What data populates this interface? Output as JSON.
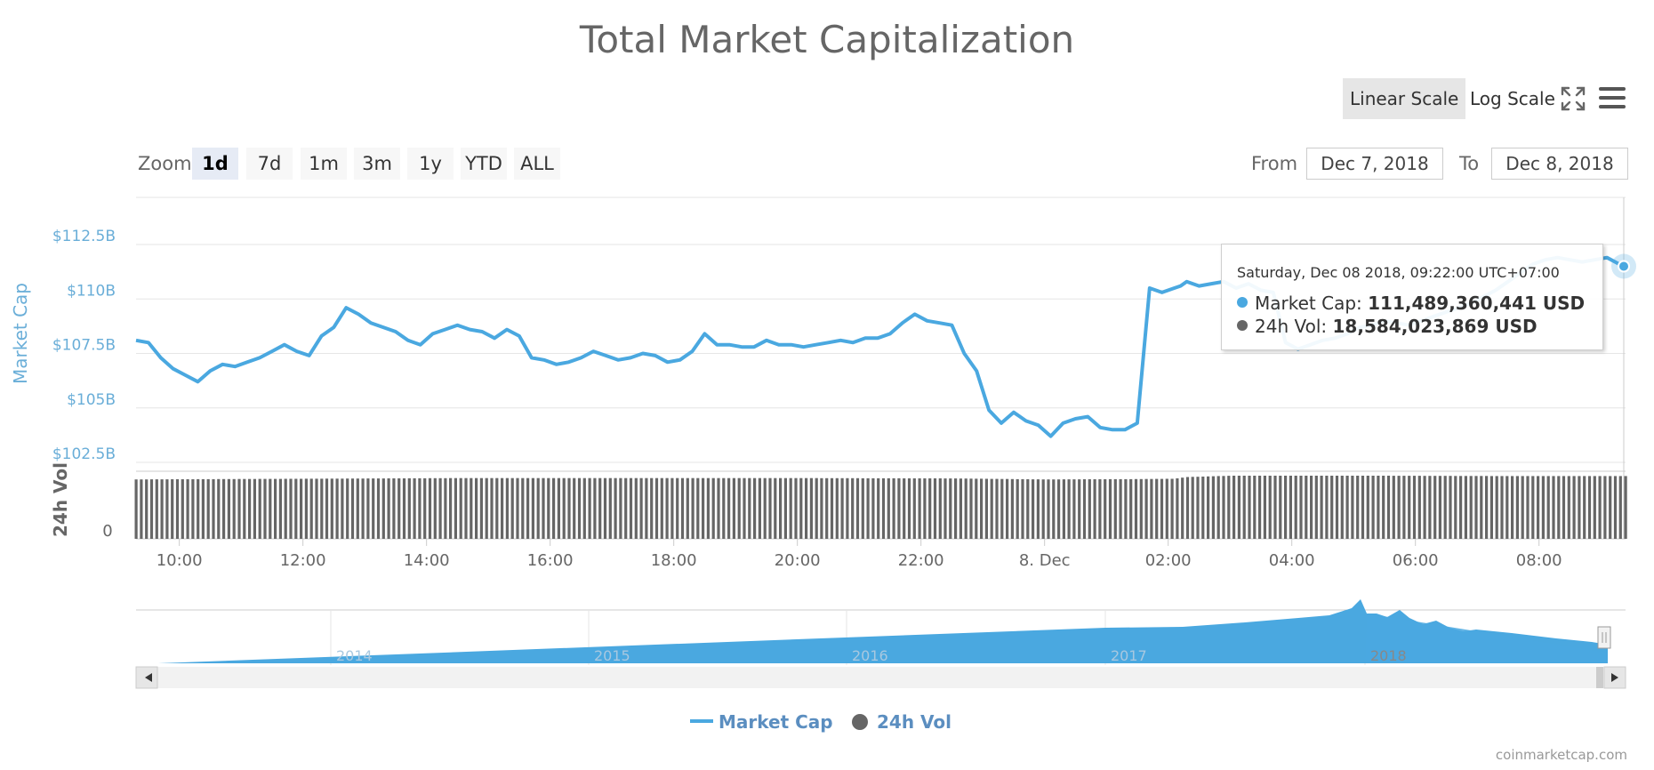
{
  "header": {
    "title": "Total Market Capitalization"
  },
  "scale": {
    "linear_label": "Linear Scale",
    "log_label": "Log Scale",
    "active": "linear"
  },
  "zoom": {
    "label": "Zoom",
    "buttons": [
      "1d",
      "7d",
      "1m",
      "3m",
      "1y",
      "YTD",
      "ALL"
    ],
    "active": "1d"
  },
  "range": {
    "from_label": "From",
    "from_value": "Dec 7, 2018",
    "to_label": "To",
    "to_value": "Dec 8, 2018"
  },
  "tooltip": {
    "date": "Saturday, Dec 08 2018, 09:22:00 UTC+07:00",
    "market_cap_label": "Market Cap:",
    "market_cap_value": "111,489,360,441 USD",
    "vol_label": "24h Vol:",
    "vol_value": "18,584,023,869 USD"
  },
  "legend": {
    "market_cap": "Market Cap",
    "vol": "24h Vol"
  },
  "credits": "coinmarketcap.com",
  "icons": {
    "fullscreen": "fullscreen-icon",
    "menu": "hamburger-menu-icon"
  },
  "chart_data": {
    "type": "line",
    "title": "Total Market Capitalization",
    "colors": {
      "market_cap": "#4aa8e0",
      "vol": "#666666",
      "navigator": "#4aa8e0",
      "axis_label": "#6aaed8"
    },
    "y_axis": {
      "label": "Market Cap",
      "ticks": [
        "$102.5B",
        "$105B",
        "$107.5B",
        "$110B",
        "$112.5B"
      ],
      "tick_values": [
        102.5,
        105,
        107.5,
        110,
        112.5
      ],
      "unit": "billion USD"
    },
    "vol_axis": {
      "label": "24h Vol",
      "ticks": [
        "0"
      ]
    },
    "x_axis": {
      "ticks": [
        "10:00",
        "12:00",
        "14:00",
        "16:00",
        "18:00",
        "20:00",
        "22:00",
        "8. Dec",
        "02:00",
        "04:00",
        "06:00",
        "08:00"
      ],
      "start_hours": 9.3,
      "end_hours": 33.4
    },
    "series": [
      {
        "name": "Market Cap",
        "x_hours": [
          9.3,
          9.5,
          9.7,
          9.9,
          10.1,
          10.3,
          10.5,
          10.7,
          10.9,
          11.1,
          11.3,
          11.5,
          11.7,
          11.9,
          12.1,
          12.3,
          12.5,
          12.7,
          12.9,
          13.1,
          13.3,
          13.5,
          13.7,
          13.9,
          14.1,
          14.3,
          14.5,
          14.7,
          14.9,
          15.1,
          15.3,
          15.5,
          15.7,
          15.9,
          16.1,
          16.3,
          16.5,
          16.7,
          16.9,
          17.1,
          17.3,
          17.5,
          17.7,
          17.9,
          18.1,
          18.3,
          18.5,
          18.7,
          18.9,
          19.1,
          19.3,
          19.5,
          19.7,
          19.9,
          20.1,
          20.3,
          20.5,
          20.7,
          20.9,
          21.1,
          21.3,
          21.5,
          21.7,
          21.9,
          22.1,
          22.3,
          22.5,
          22.7,
          22.9,
          23.1,
          23.3,
          23.5,
          23.7,
          23.9,
          24.1,
          24.3,
          24.5,
          24.7,
          24.9,
          25.1,
          25.3,
          25.5,
          25.7,
          25.9,
          26.1,
          26.2,
          26.3,
          26.5,
          26.7,
          26.9,
          27.1,
          27.3,
          27.5,
          27.7,
          27.9,
          28.1,
          28.3,
          28.5,
          28.7,
          28.9,
          29.1,
          29.3,
          29.5,
          29.7,
          29.9,
          30.1,
          30.3,
          30.5,
          30.7,
          30.9,
          31.1,
          31.3,
          31.5,
          31.7,
          31.9,
          32.1,
          32.3,
          32.5,
          32.7,
          32.9,
          33.1,
          33.3,
          33.4
        ],
        "values": [
          108.1,
          108.0,
          107.3,
          106.8,
          106.5,
          106.2,
          106.7,
          107.0,
          106.9,
          107.1,
          107.3,
          107.6,
          107.9,
          107.6,
          107.4,
          108.3,
          108.7,
          109.6,
          109.3,
          108.9,
          108.7,
          108.5,
          108.1,
          107.9,
          108.4,
          108.6,
          108.8,
          108.6,
          108.5,
          108.2,
          108.6,
          108.3,
          107.3,
          107.2,
          107.0,
          107.1,
          107.3,
          107.6,
          107.4,
          107.2,
          107.3,
          107.5,
          107.4,
          107.1,
          107.2,
          107.6,
          108.4,
          107.9,
          107.9,
          107.8,
          107.8,
          108.1,
          107.9,
          107.9,
          107.8,
          107.9,
          108.0,
          108.1,
          108.0,
          108.2,
          108.2,
          108.4,
          108.9,
          109.3,
          109.0,
          108.9,
          108.8,
          107.5,
          106.7,
          104.9,
          104.3,
          104.8,
          104.4,
          104.2,
          103.7,
          104.3,
          104.5,
          104.6,
          104.1,
          104.0,
          104.0,
          104.3,
          110.5,
          110.3,
          110.5,
          110.6,
          110.8,
          110.6,
          110.7,
          110.8,
          110.5,
          110.7,
          110.4,
          110.3,
          108.0,
          107.7,
          107.9,
          108.1,
          108.2,
          108.4,
          108.7,
          108.8,
          109.0,
          108.9,
          108.8,
          109.0,
          109.2,
          109.4,
          109.6,
          109.8,
          110.1,
          110.4,
          110.8,
          111.2,
          111.6,
          111.8,
          111.9,
          111.8,
          111.7,
          111.8,
          111.9,
          111.6,
          111.5
        ]
      },
      {
        "name": "24h Vol",
        "x_hours": [
          9.3,
          12.0,
          14.5,
          17.0,
          20.0,
          22.5,
          24.0,
          25.5,
          26.1,
          26.3,
          27.0,
          29.5,
          31.5,
          33.4
        ],
        "values": [
          17.6,
          17.8,
          18.0,
          18.0,
          18.0,
          17.9,
          17.6,
          17.7,
          17.8,
          18.3,
          18.7,
          18.7,
          18.6,
          18.6
        ]
      }
    ],
    "navigator": {
      "labels": [
        "2014",
        "2015",
        "2016",
        "2017",
        "2018"
      ]
    },
    "grid": true,
    "legend_position": "bottom-center"
  }
}
